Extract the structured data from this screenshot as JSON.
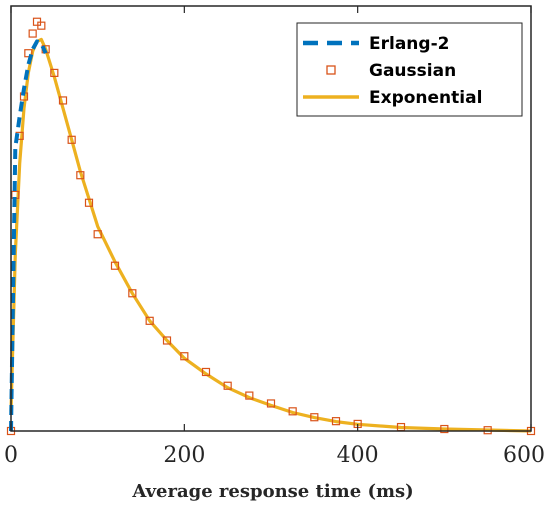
{
  "chart_data": {
    "type": "line",
    "title": "",
    "xlabel": "Average response time (ms)",
    "ylabel": "",
    "xlim": [
      0,
      600
    ],
    "ylim": [
      0,
      1
    ],
    "xticks": [
      0,
      200,
      400,
      600
    ],
    "xtick_labels": [
      "0",
      "200",
      "400",
      "600"
    ],
    "yticks": [],
    "grid": false,
    "legend_position": "top-right",
    "series": [
      {
        "name": "Erlang-2",
        "style": "dashed",
        "color": "#0072BD",
        "x": [
          0,
          5,
          10,
          15,
          20,
          25,
          30,
          35,
          40
        ],
        "y": [
          0.0,
          0.72,
          0.8,
          0.87,
          0.93,
          0.97,
          0.99,
          0.985,
          0.96
        ]
      },
      {
        "name": "Gaussian",
        "style": "markers-square",
        "color": "#D95319",
        "x": [
          0,
          5,
          10,
          15,
          20,
          25,
          30,
          35,
          40,
          50,
          60,
          70,
          80,
          90,
          100,
          120,
          140,
          160,
          180,
          200,
          225,
          250,
          275,
          300,
          325,
          350,
          375,
          400,
          450,
          500,
          550,
          600
        ],
        "y": [
          0.0,
          0.6,
          0.75,
          0.85,
          0.96,
          1.01,
          1.04,
          1.03,
          0.97,
          0.91,
          0.84,
          0.74,
          0.65,
          0.58,
          0.5,
          0.42,
          0.35,
          0.28,
          0.23,
          0.19,
          0.15,
          0.115,
          0.09,
          0.07,
          0.05,
          0.035,
          0.025,
          0.018,
          0.01,
          0.005,
          0.002,
          0.0
        ]
      },
      {
        "name": "Exponential",
        "style": "solid",
        "color": "#EDB120",
        "x": [
          0,
          5,
          10,
          15,
          20,
          25,
          30,
          35,
          40,
          50,
          60,
          70,
          80,
          90,
          100,
          120,
          140,
          160,
          180,
          200,
          225,
          250,
          275,
          300,
          325,
          350,
          375,
          400,
          450,
          500,
          550,
          600
        ],
        "y": [
          0.05,
          0.45,
          0.68,
          0.82,
          0.91,
          0.965,
          0.99,
          0.995,
          0.97,
          0.9,
          0.82,
          0.74,
          0.66,
          0.59,
          0.52,
          0.43,
          0.35,
          0.28,
          0.23,
          0.185,
          0.145,
          0.11,
          0.085,
          0.065,
          0.047,
          0.034,
          0.024,
          0.017,
          0.009,
          0.005,
          0.0025,
          0.0
        ]
      }
    ]
  }
}
